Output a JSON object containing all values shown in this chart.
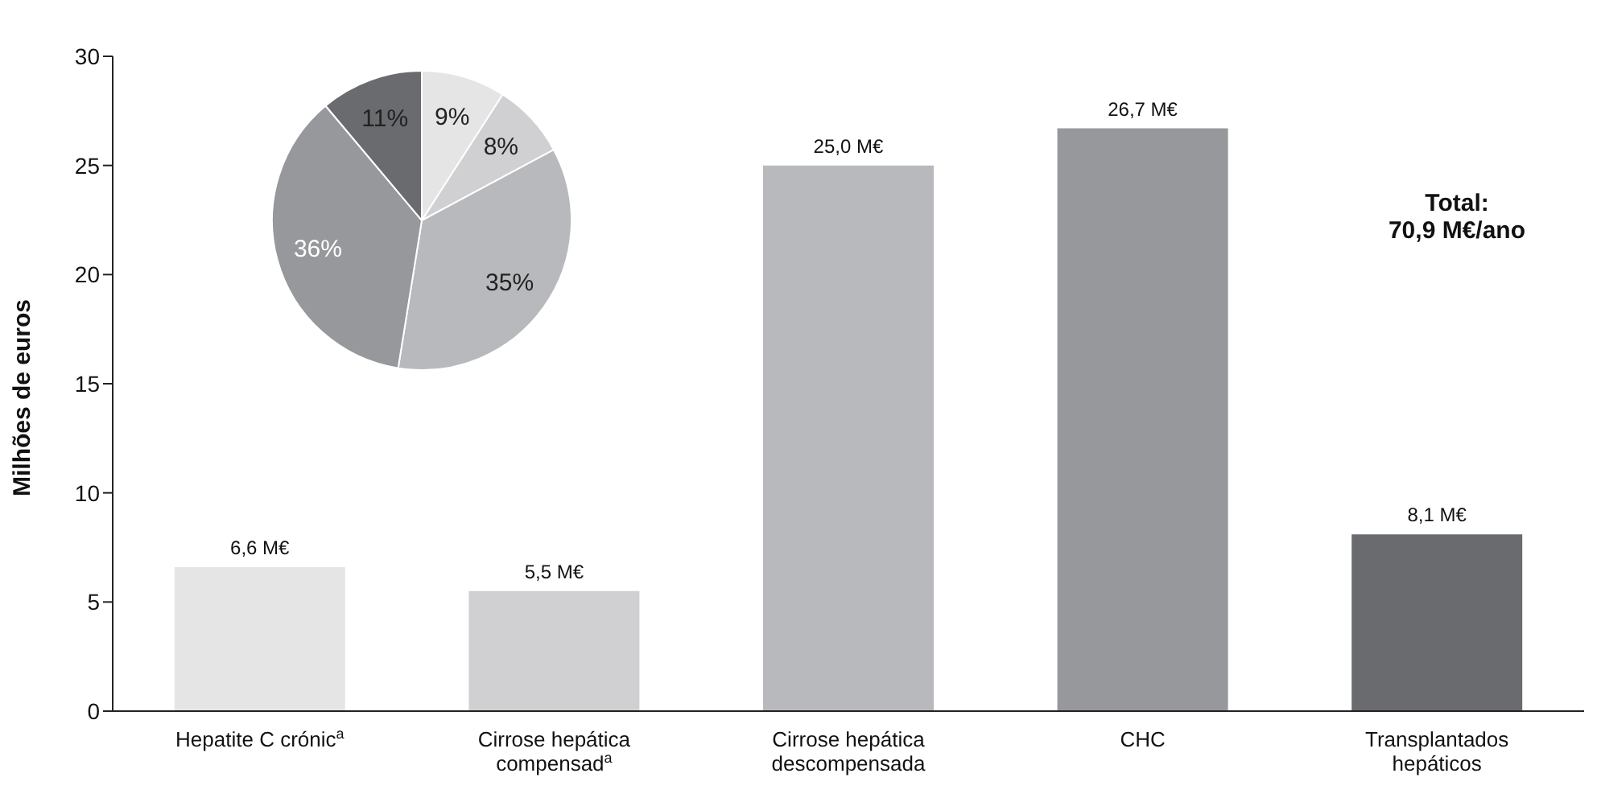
{
  "chart_data": [
    {
      "type": "bar",
      "ylabel": "Milhões de euros",
      "categories": [
        "Hepatite C crónic$^{a}$",
        "Cirrose hepática compensad$^{a}$",
        "Cirrose hepática descompensada",
        "CHC",
        "Transplantados hepáticos"
      ],
      "values": [
        6.6,
        5.5,
        25.0,
        26.7,
        8.1
      ],
      "value_labels": [
        "6,6 M€",
        "5,5 M€",
        "25,0 M€",
        "26,7 M€",
        "8,1 M€"
      ],
      "colors": [
        "#e5e5e6",
        "#d0d0d2",
        "#b8b9bc",
        "#97989c",
        "#6a6b6f"
      ],
      "ylim": [
        0,
        30
      ],
      "yticks": [
        0,
        5,
        10,
        15,
        20,
        25,
        30
      ],
      "grid": false,
      "legend": false,
      "annotations": [
        "Total:\n70,9 M€/ano"
      ]
    },
    {
      "type": "pie",
      "categories": [
        null,
        null,
        null,
        null,
        null
      ],
      "values": [
        9,
        8,
        35,
        36,
        11
      ],
      "value_labels": [
        "9%",
        "8%",
        "35%",
        "36%",
        "11%"
      ],
      "colors": [
        "#e5e5e6",
        "#d0d0d2",
        "#b8b9bc",
        "#97989c",
        "#6a6b6f"
      ],
      "legend": false
    }
  ]
}
